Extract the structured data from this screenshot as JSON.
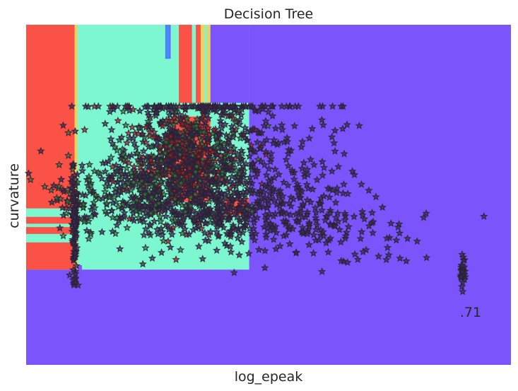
{
  "chart_data": {
    "type": "scatter",
    "title": "Decision Tree",
    "xlabel": "log_epeak",
    "ylabel": "curvature",
    "annotation": ".71",
    "xlim": [
      0,
      100
    ],
    "ylim": [
      0,
      100
    ],
    "grid": false,
    "legend": "none",
    "ticks": "none",
    "colors": {
      "class_high": "#fa5246",
      "class_mid": "#7df7cf",
      "class_low": "#7b55fb",
      "boundary_yellow": "#f0d060",
      "boundary_blue": "#3f8cff",
      "marker_edge": "#2a2130",
      "marker_fill_dark": "#3a2a5a",
      "marker_fill_green": "#2f7f3a",
      "marker_fill_red": "#b01c1c"
    },
    "regions": [
      {
        "class": "mid",
        "x": [
          0,
          46
        ],
        "y": [
          28,
          100
        ]
      },
      {
        "class": "high",
        "x": [
          0,
          10
        ],
        "y": [
          28,
          100
        ]
      },
      {
        "class": "mid",
        "x": [
          0,
          10
        ],
        "y": [
          36,
          46
        ]
      },
      {
        "class": "high",
        "x": [
          0,
          10
        ],
        "y": [
          38.5,
          40.5
        ]
      },
      {
        "class": "high",
        "x": [
          0,
          10
        ],
        "y": [
          41.5,
          43.5
        ]
      },
      {
        "class": "high",
        "x": [
          31.5,
          36
        ],
        "y": [
          77,
          100
        ]
      },
      {
        "class": "mid",
        "x": [
          34.2,
          35
        ],
        "y": [
          77,
          100
        ]
      },
      {
        "class": "high",
        "x": [
          30,
          38
        ],
        "y": [
          48,
          73
        ]
      },
      {
        "class": "high",
        "x": [
          41,
          46
        ],
        "y": [
          44,
          49
        ]
      },
      {
        "class": "high",
        "x": [
          25,
          30
        ],
        "y": [
          55,
          58
        ]
      },
      {
        "class": "low",
        "x": [
          38,
          46
        ],
        "y": [
          77,
          100
        ]
      },
      {
        "class": "mid",
        "x": [
          38,
          46
        ],
        "y": [
          70,
          77
        ]
      },
      {
        "class": "mid",
        "x": [
          38,
          44.5
        ],
        "y": [
          54,
          58
        ]
      },
      {
        "class": "low",
        "x": [
          28.7,
          29.8
        ],
        "y": [
          90,
          100
        ]
      },
      {
        "class": "low",
        "x": [
          10.5,
          11.5
        ],
        "y": [
          28,
          29.3
        ]
      }
    ],
    "boundaries": [
      {
        "color": "boundary_yellow",
        "x": [
          10,
          10.6
        ],
        "y": [
          28,
          100
        ]
      },
      {
        "color": "boundary_yellow",
        "x": [
          36,
          36.8
        ],
        "y": [
          77,
          100
        ]
      },
      {
        "color": "boundary_yellow",
        "x": [
          37.3,
          38
        ],
        "y": [
          77,
          100
        ]
      },
      {
        "color": "boundary_blue",
        "x": [
          28.8,
          29.6
        ],
        "y": [
          90,
          100
        ]
      }
    ],
    "clusters": [
      {
        "cx": 32,
        "cy": 60,
        "sx": 7,
        "sy": 9,
        "n": 900,
        "fill": "mix"
      },
      {
        "cx": 40,
        "cy": 46,
        "sx": 11,
        "sy": 5,
        "n": 340,
        "fill": "dark"
      },
      {
        "cx": 22,
        "cy": 50,
        "sx": 9,
        "sy": 6,
        "n": 260,
        "fill": "green"
      },
      {
        "cx": 50,
        "cy": 55,
        "sx": 9,
        "sy": 10,
        "n": 120,
        "fill": "dark"
      },
      {
        "cx": 60,
        "cy": 40,
        "sx": 9,
        "sy": 4.5,
        "n": 110,
        "fill": "dark"
      },
      {
        "cx": 40,
        "cy": 76,
        "sx": 12,
        "sy": 1.2,
        "n": 80,
        "fill": "dark"
      },
      {
        "cx": 10,
        "cy": 40,
        "sx": 0.3,
        "sy": 8,
        "n": 95,
        "fill": "dark"
      },
      {
        "cx": 90,
        "cy": 27,
        "sx": 0.3,
        "sy": 2.5,
        "n": 28,
        "fill": "dark"
      },
      {
        "cx": 45,
        "cy": 65,
        "sx": 4,
        "sy": 8,
        "n": 60,
        "fill": "dark"
      }
    ],
    "outliers": [
      {
        "x": 17.8,
        "y": 76
      },
      {
        "x": 20.5,
        "y": 76
      },
      {
        "x": 25.2,
        "y": 76
      },
      {
        "x": 50.5,
        "y": 76
      },
      {
        "x": 55.5,
        "y": 76
      },
      {
        "x": 60.6,
        "y": 76
      },
      {
        "x": 63.2,
        "y": 76
      },
      {
        "x": 65,
        "y": 76
      },
      {
        "x": 61,
        "y": 72
      },
      {
        "x": 68.7,
        "y": 70.3
      },
      {
        "x": 65.3,
        "y": 69.4
      },
      {
        "x": 66.2,
        "y": 70.6
      },
      {
        "x": 58.4,
        "y": 66.6
      },
      {
        "x": 53.9,
        "y": 65.6
      },
      {
        "x": 57,
        "y": 65.6
      },
      {
        "x": 63.7,
        "y": 62.8
      },
      {
        "x": 61.1,
        "y": 59.7
      },
      {
        "x": 58,
        "y": 57.4
      },
      {
        "x": 67.3,
        "y": 56.9
      },
      {
        "x": 59.1,
        "y": 51.6
      },
      {
        "x": 61.4,
        "y": 49.6
      },
      {
        "x": 73.5,
        "y": 46.3
      },
      {
        "x": 82,
        "y": 43.3
      },
      {
        "x": 69.5,
        "y": 33.2
      },
      {
        "x": 72.7,
        "y": 31.9
      },
      {
        "x": 74.8,
        "y": 32.3
      },
      {
        "x": 77.1,
        "y": 31.3
      },
      {
        "x": 74.3,
        "y": 30.9
      },
      {
        "x": 78.4,
        "y": 30.5
      },
      {
        "x": 82.6,
        "y": 31.5
      },
      {
        "x": 67.8,
        "y": 32.5
      },
      {
        "x": 66.3,
        "y": 30.1
      }
    ]
  }
}
